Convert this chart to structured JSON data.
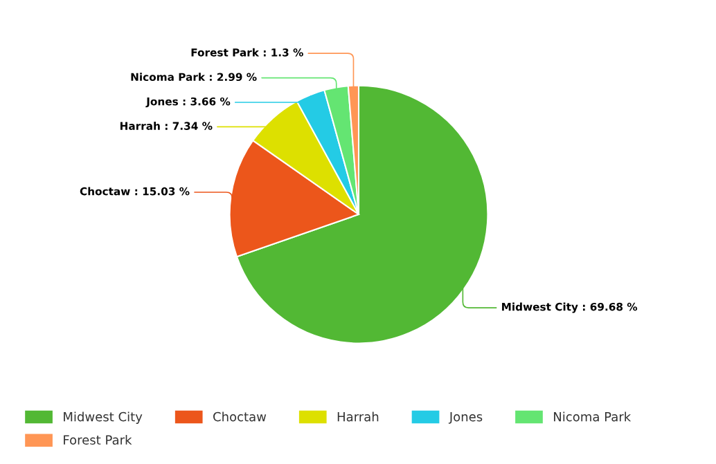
{
  "chart_data": {
    "type": "pie",
    "categories": [
      "Midwest City",
      "Choctaw",
      "Harrah",
      "Jones",
      "Nicoma Park",
      "Forest Park"
    ],
    "values": [
      69.68,
      15.03,
      7.34,
      3.66,
      2.99,
      1.3
    ],
    "colors": [
      "#52b834",
      "#ec561b",
      "#dde000",
      "#24cbe5",
      "#64e572",
      "#ff9655"
    ],
    "value_labels": [
      "Midwest City : 69.68 %",
      "Choctaw : 15.03 %",
      "Harrah : 7.34 %",
      "Jones : 3.66 %",
      "Nicoma Park : 2.99 %",
      "Forest Park : 1.3 %"
    ],
    "legend": "bottom"
  }
}
